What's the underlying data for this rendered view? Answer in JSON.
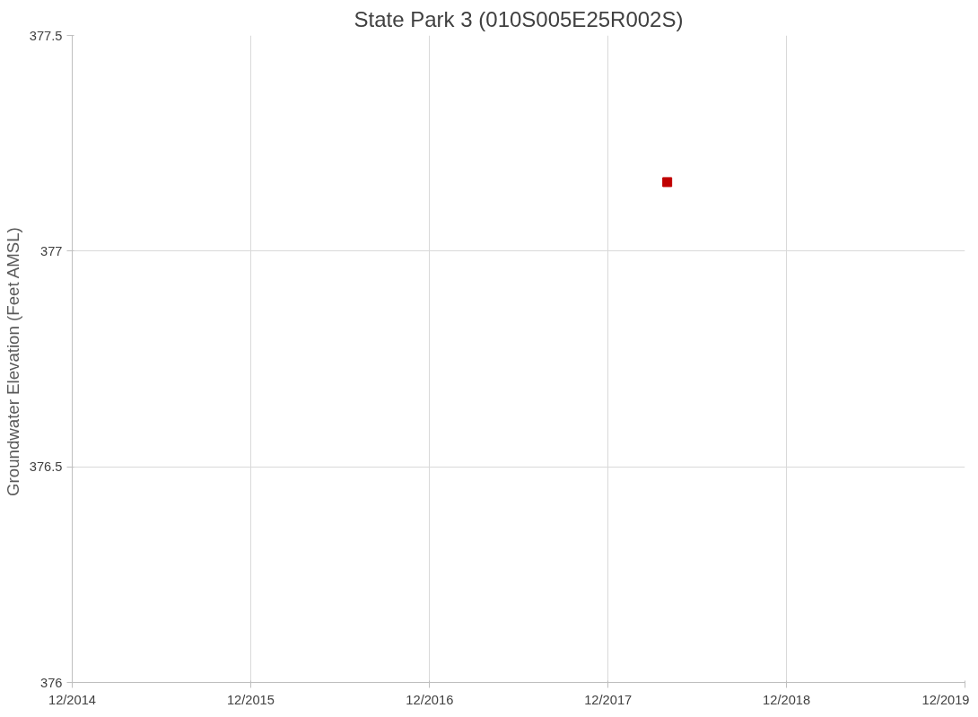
{
  "chart_data": {
    "type": "scatter",
    "title": "State Park 3 (010S005E25R002S)",
    "ylabel": "Groundwater Elevation  (Feet AMSL)",
    "x": [
      "2018-04-01"
    ],
    "series": [
      {
        "color": "#c00000",
        "values": [
          377.16
        ]
      }
    ],
    "marker": "square",
    "grid": true,
    "xlim": [
      "2014-12-01",
      "2019-12-01"
    ],
    "xticks": [
      {
        "value": "2014-12-01",
        "label": "12/2014"
      },
      {
        "value": "2015-12-01",
        "label": "12/2015"
      },
      {
        "value": "2016-12-01",
        "label": "12/2016"
      },
      {
        "value": "2017-12-01",
        "label": "12/2017"
      },
      {
        "value": "2018-12-01",
        "label": "12/2018"
      },
      {
        "value": "2019-12-01",
        "label": "12/2019"
      }
    ],
    "ylim": [
      376,
      377.5
    ],
    "yticks": [
      376,
      376.5,
      377,
      377.5
    ]
  }
}
